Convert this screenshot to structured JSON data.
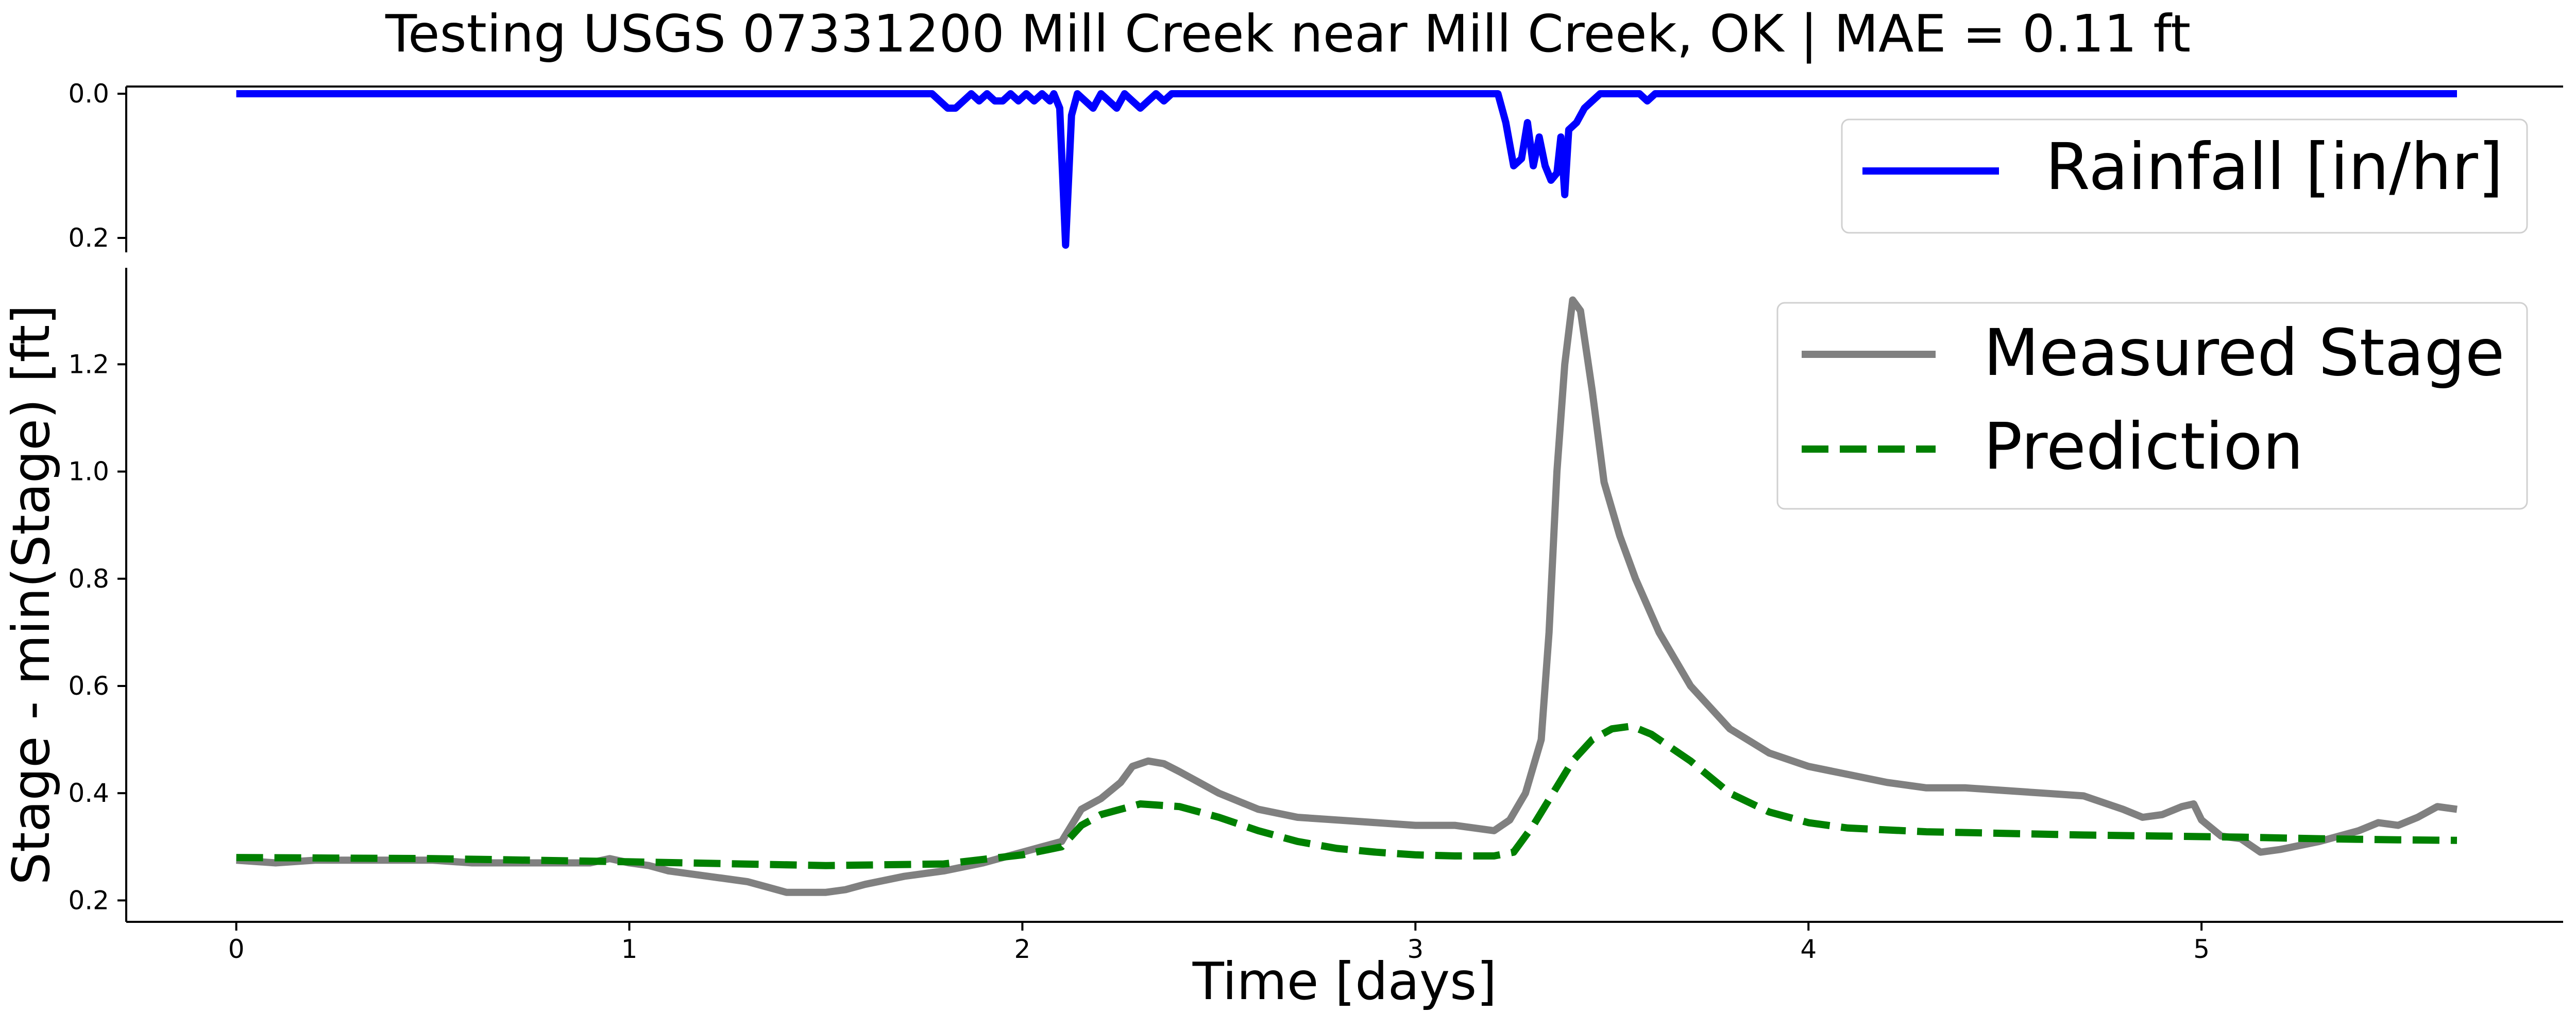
{
  "figure": {
    "title": "Testing USGS 07331200 Mill Creek near Mill Creek, OK | MAE = 0.11 ft"
  },
  "chart_data": [
    {
      "type": "line",
      "panel": "rainfall",
      "xlim": [
        -0.28,
        5.92
      ],
      "ylim": [
        0.22,
        -0.01
      ],
      "y_inverted": true,
      "yticks": [
        0.0,
        0.2
      ],
      "ytick_labels": [
        "0.0",
        "0.2"
      ],
      "grid": false,
      "legend_position": "upper-right",
      "series": [
        {
          "name": "Rainfall [in/hr]",
          "color": "#0000ff",
          "style": "solid",
          "points": [
            [
              0.0,
              0.0
            ],
            [
              1.77,
              0.0
            ],
            [
              1.79,
              0.01
            ],
            [
              1.81,
              0.02
            ],
            [
              1.83,
              0.02
            ],
            [
              1.85,
              0.01
            ],
            [
              1.87,
              0.0
            ],
            [
              1.89,
              0.01
            ],
            [
              1.91,
              0.0
            ],
            [
              1.93,
              0.01
            ],
            [
              1.95,
              0.01
            ],
            [
              1.97,
              0.0
            ],
            [
              1.99,
              0.01
            ],
            [
              2.01,
              0.0
            ],
            [
              2.03,
              0.01
            ],
            [
              2.05,
              0.0
            ],
            [
              2.07,
              0.01
            ],
            [
              2.08,
              0.0
            ],
            [
              2.095,
              0.02
            ],
            [
              2.11,
              0.21
            ],
            [
              2.125,
              0.03
            ],
            [
              2.14,
              0.0
            ],
            [
              2.16,
              0.01
            ],
            [
              2.18,
              0.02
            ],
            [
              2.2,
              0.0
            ],
            [
              2.22,
              0.01
            ],
            [
              2.24,
              0.02
            ],
            [
              2.26,
              0.0
            ],
            [
              2.28,
              0.01
            ],
            [
              2.3,
              0.02
            ],
            [
              2.32,
              0.01
            ],
            [
              2.34,
              0.0
            ],
            [
              2.36,
              0.01
            ],
            [
              2.38,
              0.0
            ],
            [
              3.21,
              0.0
            ],
            [
              3.23,
              0.04
            ],
            [
              3.25,
              0.1
            ],
            [
              3.27,
              0.09
            ],
            [
              3.285,
              0.04
            ],
            [
              3.3,
              0.1
            ],
            [
              3.315,
              0.06
            ],
            [
              3.33,
              0.1
            ],
            [
              3.345,
              0.12
            ],
            [
              3.36,
              0.11
            ],
            [
              3.37,
              0.06
            ],
            [
              3.38,
              0.14
            ],
            [
              3.39,
              0.05
            ],
            [
              3.41,
              0.04
            ],
            [
              3.43,
              0.02
            ],
            [
              3.45,
              0.01
            ],
            [
              3.47,
              0.0
            ],
            [
              3.57,
              0.0
            ],
            [
              3.59,
              0.01
            ],
            [
              3.61,
              0.0
            ],
            [
              5.65,
              0.0
            ]
          ]
        }
      ]
    },
    {
      "type": "line",
      "panel": "stage",
      "xlabel": "Time [days]",
      "ylabel": "Stage - min(Stage) [ft]",
      "xlim": [
        -0.28,
        5.92
      ],
      "ylim": [
        0.16,
        1.38
      ],
      "xticks": [
        0,
        1,
        2,
        3,
        4,
        5
      ],
      "xtick_labels": [
        "0",
        "1",
        "2",
        "3",
        "4",
        "5"
      ],
      "yticks": [
        0.2,
        0.4,
        0.6,
        0.8,
        1.0,
        1.2
      ],
      "ytick_labels": [
        "0.2",
        "0.4",
        "0.6",
        "0.8",
        "1.0",
        "1.2"
      ],
      "grid": false,
      "legend_position": "upper-right",
      "series": [
        {
          "name": "Measured Stage",
          "color": "#808080",
          "style": "solid",
          "points": [
            [
              0.0,
              0.275
            ],
            [
              0.1,
              0.27
            ],
            [
              0.2,
              0.275
            ],
            [
              0.3,
              0.275
            ],
            [
              0.4,
              0.275
            ],
            [
              0.5,
              0.275
            ],
            [
              0.6,
              0.27
            ],
            [
              0.7,
              0.27
            ],
            [
              0.8,
              0.27
            ],
            [
              0.9,
              0.27
            ],
            [
              0.95,
              0.278
            ],
            [
              1.0,
              0.27
            ],
            [
              1.05,
              0.265
            ],
            [
              1.1,
              0.255
            ],
            [
              1.2,
              0.245
            ],
            [
              1.3,
              0.235
            ],
            [
              1.35,
              0.225
            ],
            [
              1.4,
              0.215
            ],
            [
              1.5,
              0.215
            ],
            [
              1.55,
              0.22
            ],
            [
              1.6,
              0.23
            ],
            [
              1.7,
              0.245
            ],
            [
              1.8,
              0.255
            ],
            [
              1.9,
              0.27
            ],
            [
              2.0,
              0.29
            ],
            [
              2.05,
              0.3
            ],
            [
              2.1,
              0.31
            ],
            [
              2.15,
              0.37
            ],
            [
              2.2,
              0.39
            ],
            [
              2.25,
              0.42
            ],
            [
              2.28,
              0.45
            ],
            [
              2.32,
              0.46
            ],
            [
              2.36,
              0.455
            ],
            [
              2.4,
              0.44
            ],
            [
              2.45,
              0.42
            ],
            [
              2.5,
              0.4
            ],
            [
              2.55,
              0.385
            ],
            [
              2.6,
              0.37
            ],
            [
              2.7,
              0.355
            ],
            [
              2.8,
              0.35
            ],
            [
              2.9,
              0.345
            ],
            [
              3.0,
              0.34
            ],
            [
              3.1,
              0.34
            ],
            [
              3.2,
              0.33
            ],
            [
              3.24,
              0.35
            ],
            [
              3.28,
              0.4
            ],
            [
              3.32,
              0.5
            ],
            [
              3.34,
              0.7
            ],
            [
              3.36,
              1.0
            ],
            [
              3.38,
              1.2
            ],
            [
              3.4,
              1.32
            ],
            [
              3.42,
              1.3
            ],
            [
              3.45,
              1.15
            ],
            [
              3.48,
              0.98
            ],
            [
              3.52,
              0.88
            ],
            [
              3.56,
              0.8
            ],
            [
              3.62,
              0.7
            ],
            [
              3.7,
              0.6
            ],
            [
              3.8,
              0.52
            ],
            [
              3.9,
              0.475
            ],
            [
              4.0,
              0.45
            ],
            [
              4.1,
              0.435
            ],
            [
              4.2,
              0.42
            ],
            [
              4.3,
              0.41
            ],
            [
              4.4,
              0.41
            ],
            [
              4.5,
              0.405
            ],
            [
              4.6,
              0.4
            ],
            [
              4.7,
              0.395
            ],
            [
              4.8,
              0.37
            ],
            [
              4.85,
              0.355
            ],
            [
              4.9,
              0.36
            ],
            [
              4.95,
              0.375
            ],
            [
              4.98,
              0.38
            ],
            [
              5.0,
              0.35
            ],
            [
              5.05,
              0.32
            ],
            [
              5.1,
              0.315
            ],
            [
              5.15,
              0.29
            ],
            [
              5.2,
              0.295
            ],
            [
              5.3,
              0.31
            ],
            [
              5.4,
              0.33
            ],
            [
              5.45,
              0.345
            ],
            [
              5.5,
              0.34
            ],
            [
              5.55,
              0.355
            ],
            [
              5.6,
              0.375
            ],
            [
              5.65,
              0.37
            ]
          ]
        },
        {
          "name": "Prediction",
          "color": "#008000",
          "style": "dashed",
          "points": [
            [
              0.0,
              0.28
            ],
            [
              0.5,
              0.278
            ],
            [
              1.0,
              0.272
            ],
            [
              1.5,
              0.265
            ],
            [
              1.8,
              0.268
            ],
            [
              2.0,
              0.285
            ],
            [
              2.1,
              0.3
            ],
            [
              2.15,
              0.34
            ],
            [
              2.2,
              0.36
            ],
            [
              2.3,
              0.38
            ],
            [
              2.4,
              0.375
            ],
            [
              2.5,
              0.355
            ],
            [
              2.6,
              0.33
            ],
            [
              2.7,
              0.31
            ],
            [
              2.8,
              0.297
            ],
            [
              2.9,
              0.29
            ],
            [
              3.0,
              0.285
            ],
            [
              3.1,
              0.283
            ],
            [
              3.2,
              0.283
            ],
            [
              3.25,
              0.29
            ],
            [
              3.3,
              0.34
            ],
            [
              3.35,
              0.4
            ],
            [
              3.4,
              0.46
            ],
            [
              3.45,
              0.5
            ],
            [
              3.5,
              0.52
            ],
            [
              3.55,
              0.525
            ],
            [
              3.6,
              0.51
            ],
            [
              3.7,
              0.46
            ],
            [
              3.8,
              0.4
            ],
            [
              3.9,
              0.365
            ],
            [
              4.0,
              0.345
            ],
            [
              4.1,
              0.335
            ],
            [
              4.3,
              0.328
            ],
            [
              4.5,
              0.325
            ],
            [
              4.7,
              0.322
            ],
            [
              4.9,
              0.32
            ],
            [
              5.1,
              0.318
            ],
            [
              5.3,
              0.315
            ],
            [
              5.5,
              0.313
            ],
            [
              5.65,
              0.312
            ]
          ]
        }
      ]
    }
  ]
}
